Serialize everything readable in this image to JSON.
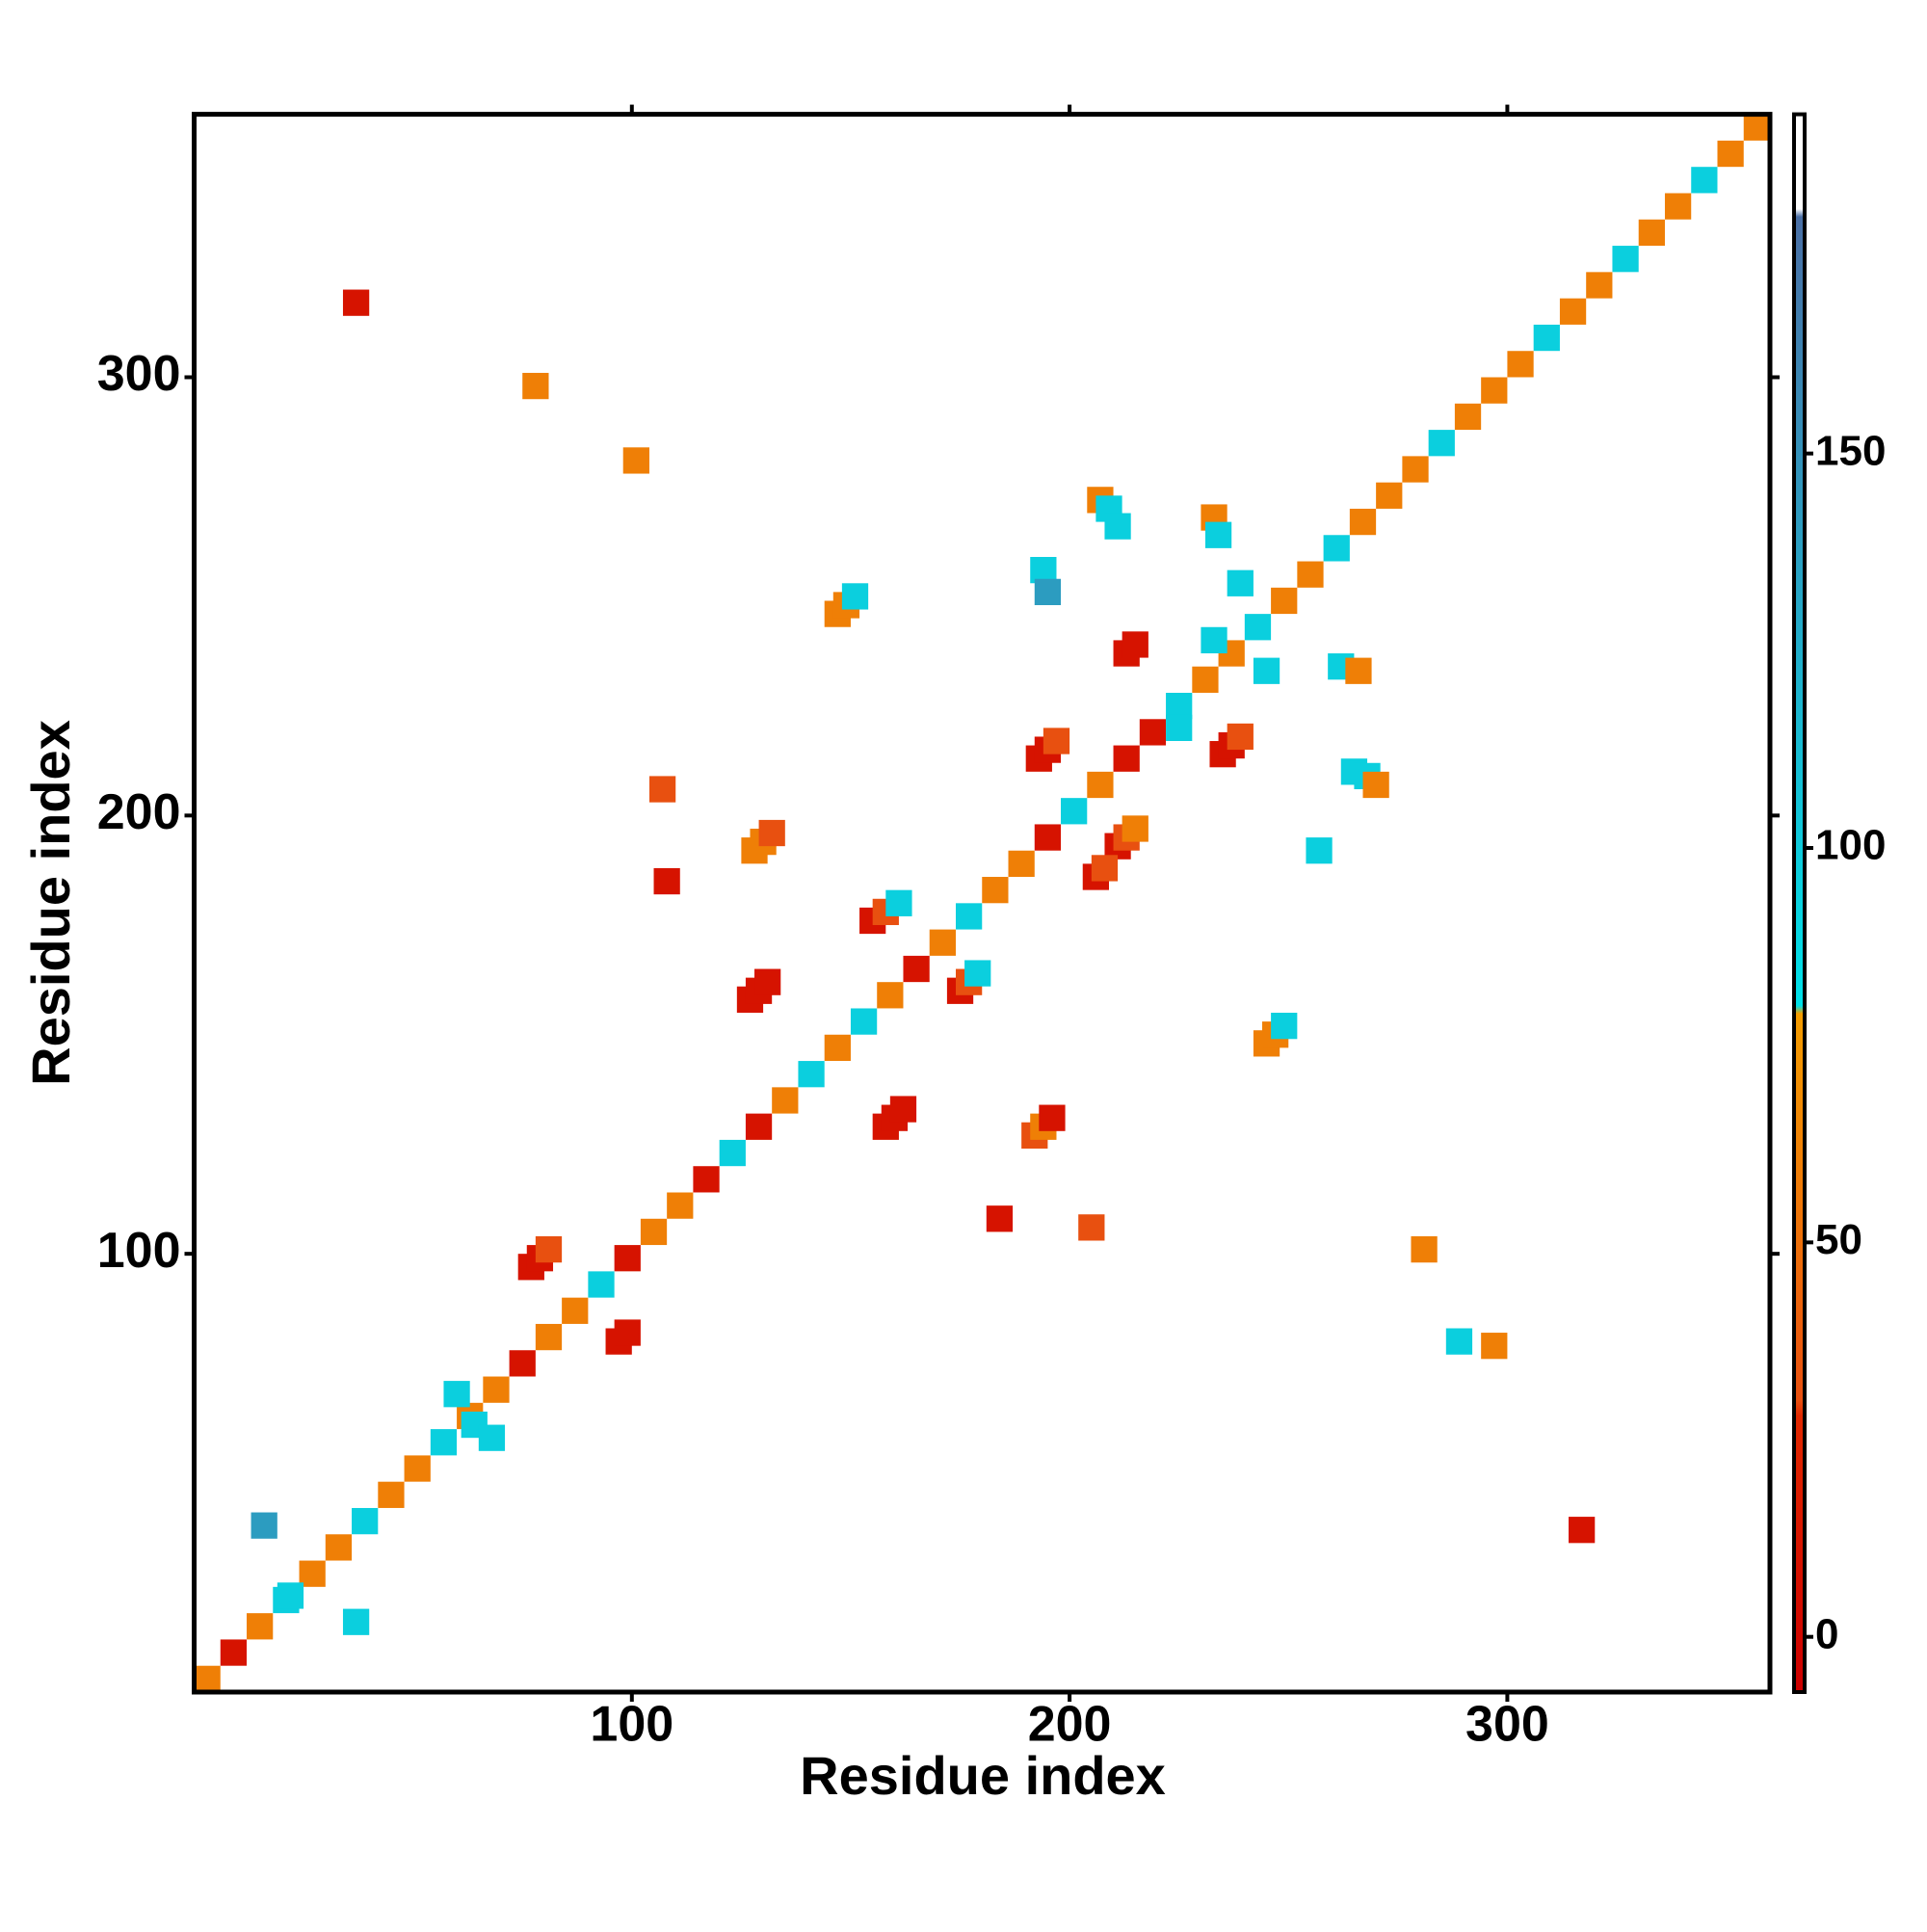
{
  "chart_data": {
    "type": "heatmap",
    "xlabel": "Residue index",
    "ylabel": "Residue index",
    "xlim": [
      0,
      360
    ],
    "ylim": [
      0,
      360
    ],
    "xticks": [
      100,
      200,
      300
    ],
    "yticks": [
      100,
      200,
      300
    ],
    "colorbar": {
      "lim": [
        -7,
        193
      ],
      "ticks": [
        0,
        50,
        100,
        150
      ],
      "stops": [
        {
          "value": -7,
          "color": "#cc0000"
        },
        {
          "value": 28,
          "color": "#e02800"
        },
        {
          "value": 30,
          "color": "#e85010"
        },
        {
          "value": 79,
          "color": "#f39c00"
        },
        {
          "value": 80,
          "color": "#00e0e8"
        },
        {
          "value": 180,
          "color": "#4a6fa5"
        },
        {
          "value": 181,
          "color": "#ffffff"
        },
        {
          "value": 193,
          "color": "#ffffff"
        }
      ]
    },
    "x": [
      3,
      9,
      15,
      21,
      27,
      33,
      39,
      45,
      51,
      57,
      63,
      69,
      75,
      81,
      87,
      93,
      99,
      105,
      111,
      117,
      123,
      129,
      135,
      141,
      147,
      153,
      159,
      165,
      171,
      177,
      183,
      189,
      195,
      201,
      207,
      213,
      219,
      225,
      231,
      237,
      243,
      249,
      255,
      261,
      267,
      273,
      279,
      285,
      291,
      297,
      303,
      309,
      315,
      321,
      327,
      333,
      339,
      345,
      351,
      357,
      77,
      79,
      81,
      97,
      99,
      127,
      129,
      131,
      128,
      130,
      132,
      155,
      158,
      161,
      158,
      160,
      162,
      175,
      177,
      179,
      192,
      194,
      196,
      193,
      195,
      197,
      213,
      215,
      235,
      237,
      239,
      211,
      213,
      215,
      206,
      208,
      147,
      149,
      151,
      245,
      247,
      249,
      107,
      108,
      265,
      268,
      270,
      262,
      266,
      207,
      209,
      211,
      233,
      234,
      239,
      194,
      195,
      205,
      184,
      37,
      78,
      101,
      297,
      289,
      281,
      317,
      37,
      16,
      22,
      64,
      257,
      225,
      60,
      68,
      233,
      245
    ],
    "y": [
      3,
      9,
      15,
      21,
      27,
      33,
      39,
      45,
      51,
      57,
      63,
      69,
      75,
      81,
      87,
      93,
      99,
      105,
      111,
      117,
      123,
      129,
      135,
      141,
      147,
      153,
      159,
      165,
      171,
      177,
      183,
      189,
      195,
      201,
      207,
      213,
      219,
      225,
      231,
      237,
      243,
      249,
      255,
      261,
      267,
      273,
      279,
      285,
      291,
      297,
      303,
      309,
      315,
      321,
      327,
      333,
      339,
      345,
      351,
      357,
      97,
      99,
      101,
      80,
      82,
      158,
      160,
      162,
      192,
      194,
      196,
      176,
      178,
      180,
      129,
      131,
      133,
      160,
      162,
      164,
      127,
      129,
      131,
      213,
      215,
      217,
      237,
      239,
      214,
      216,
      218,
      193,
      195,
      197,
      186,
      188,
      246,
      248,
      250,
      148,
      150,
      152,
      206,
      185,
      210,
      209,
      207,
      234,
      233,
      272,
      270,
      266,
      268,
      264,
      253,
      256,
      251,
      106,
      108,
      317,
      298,
      281,
      79,
      80,
      101,
      37,
      16,
      38,
      22,
      61,
      192,
      220,
      68,
      58,
      240,
      233
    ],
    "values": [
      60,
      10,
      60,
      95,
      60,
      60,
      95,
      60,
      60,
      95,
      60,
      60,
      10,
      60,
      60,
      95,
      10,
      60,
      60,
      10,
      95,
      10,
      60,
      95,
      60,
      95,
      60,
      10,
      60,
      95,
      60,
      60,
      10,
      95,
      60,
      10,
      10,
      95,
      60,
      60,
      95,
      60,
      60,
      95,
      60,
      60,
      60,
      95,
      60,
      60,
      60,
      95,
      60,
      60,
      95,
      60,
      60,
      95,
      60,
      60,
      10,
      10,
      30,
      10,
      10,
      10,
      10,
      10,
      60,
      60,
      30,
      10,
      30,
      95,
      10,
      10,
      10,
      10,
      30,
      95,
      30,
      60,
      10,
      10,
      10,
      30,
      10,
      10,
      10,
      10,
      30,
      10,
      30,
      60,
      10,
      30,
      60,
      60,
      95,
      60,
      60,
      95,
      30,
      10,
      95,
      95,
      60,
      95,
      60,
      60,
      95,
      95,
      60,
      95,
      95,
      95,
      140,
      30,
      10,
      10,
      60,
      60,
      60,
      95,
      60,
      10,
      95,
      140,
      95,
      95,
      95,
      95,
      95,
      95,
      95,
      95
    ]
  }
}
